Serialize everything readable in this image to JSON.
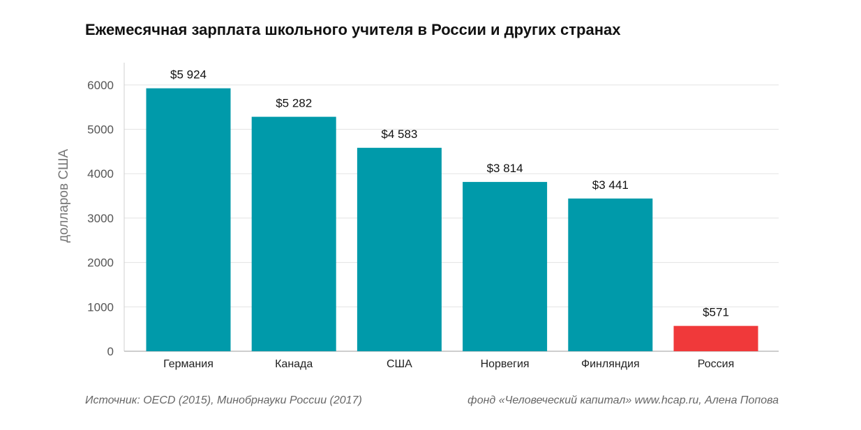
{
  "chart_data": {
    "type": "bar",
    "title": "Ежемесячная зарплата школьного учителя в России и других странах",
    "ylabel": "долларов США",
    "xlabel": "",
    "categories": [
      "Германия",
      "Канада",
      "США",
      "Норвегия",
      "Финляндия",
      "Россия"
    ],
    "values": [
      5924,
      5282,
      4583,
      3814,
      3441,
      571
    ],
    "value_labels": [
      "$5 924",
      "$5 282",
      "$4 583",
      "$3 814",
      "$3 441",
      "$571"
    ],
    "bar_colors": [
      "#009aaa",
      "#009aaa",
      "#009aaa",
      "#009aaa",
      "#009aaa",
      "#f0393a"
    ],
    "ylim": [
      0,
      6500
    ],
    "yticks": [
      0,
      1000,
      2000,
      3000,
      4000,
      5000,
      6000
    ],
    "grid": true,
    "legend": "none"
  },
  "footer": {
    "source": "Источник: OECD (2015), Минобрнауки России (2017)",
    "credit": "фонд «Человеческий капитал» www.hcap.ru, Алена Попова"
  }
}
